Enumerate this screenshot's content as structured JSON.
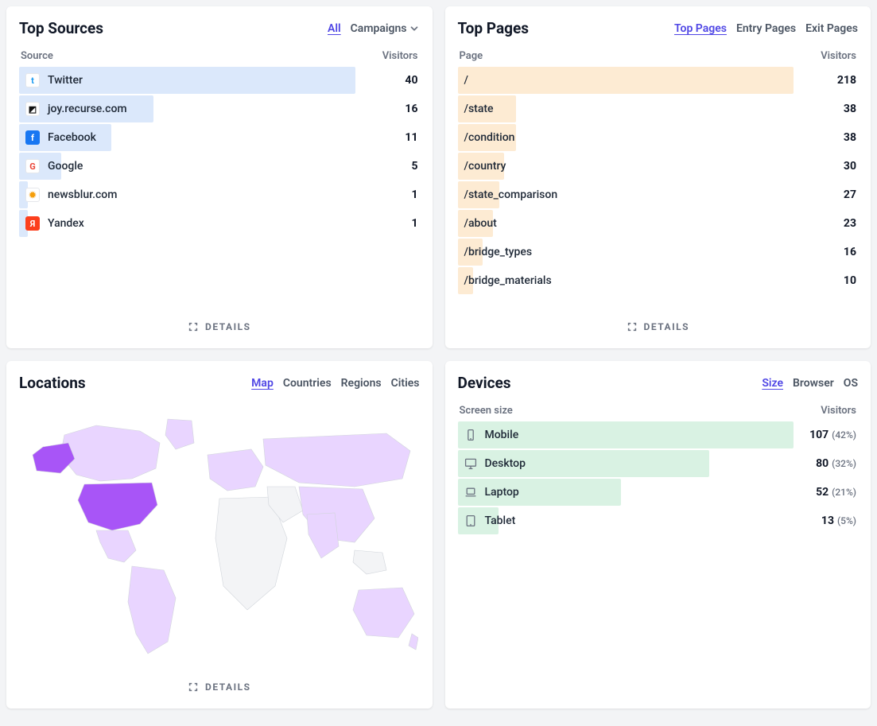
{
  "sources": {
    "title": "Top Sources",
    "tabs": [
      {
        "label": "All",
        "active": true
      },
      {
        "label": "Campaigns",
        "dropdown": true
      }
    ],
    "colLabel": "Source",
    "valueLabel": "Visitors",
    "barColor": "#dbe8fb",
    "maxValue": 40,
    "detailsLabel": "DETAILS",
    "rows": [
      {
        "label": "Twitter",
        "value": 40,
        "iconBg": "#ffffff",
        "iconColor": "#1d9bf0",
        "iconChar": "t"
      },
      {
        "label": "joy.recurse.com",
        "value": 16,
        "iconBg": "#ffffff",
        "iconColor": "#111111",
        "iconChar": "◩"
      },
      {
        "label": "Facebook",
        "value": 11,
        "iconBg": "#1877f2",
        "iconColor": "#ffffff",
        "iconChar": "f"
      },
      {
        "label": "Google",
        "value": 5,
        "iconBg": "#ffffff",
        "iconColor": "#ea4335",
        "iconChar": "G"
      },
      {
        "label": "newsblur.com",
        "value": 1,
        "iconBg": "#ffffff",
        "iconColor": "#f59e0b",
        "iconChar": "✹"
      },
      {
        "label": "Yandex",
        "value": 1,
        "iconBg": "#fc3f1d",
        "iconColor": "#ffffff",
        "iconChar": "Я"
      }
    ]
  },
  "pages": {
    "title": "Top Pages",
    "tabs": [
      {
        "label": "Top Pages",
        "active": true
      },
      {
        "label": "Entry Pages"
      },
      {
        "label": "Exit Pages"
      }
    ],
    "colLabel": "Page",
    "valueLabel": "Visitors",
    "barColor": "#fdebd3",
    "maxValue": 218,
    "detailsLabel": "DETAILS",
    "rows": [
      {
        "label": "/",
        "value": 218
      },
      {
        "label": "/state",
        "value": 38
      },
      {
        "label": "/condition",
        "value": 38
      },
      {
        "label": "/country",
        "value": 30
      },
      {
        "label": "/state_comparison",
        "value": 27
      },
      {
        "label": "/about",
        "value": 23
      },
      {
        "label": "/bridge_types",
        "value": 16
      },
      {
        "label": "/bridge_materials",
        "value": 10
      }
    ]
  },
  "locations": {
    "title": "Locations",
    "tabs": [
      {
        "label": "Map",
        "active": true
      },
      {
        "label": "Countries"
      },
      {
        "label": "Regions"
      },
      {
        "label": "Cities"
      }
    ],
    "detailsLabel": "DETAILS",
    "map": {
      "noDataFill": "#f3f4f6",
      "lowFill": "#e9d5ff",
      "medFill": "#c4b5fd",
      "highFill": "#a855f7",
      "stroke": "#d1d5db",
      "usHighlight": true
    }
  },
  "devices": {
    "title": "Devices",
    "tabs": [
      {
        "label": "Size",
        "active": true
      },
      {
        "label": "Browser"
      },
      {
        "label": "OS"
      }
    ],
    "colLabel": "Screen size",
    "valueLabel": "Visitors",
    "barColor": "#d9f2e3",
    "maxValue": 107,
    "rows": [
      {
        "label": "Mobile",
        "value": 107,
        "pct": "(42%)",
        "icon": "mobile"
      },
      {
        "label": "Desktop",
        "value": 80,
        "pct": "(32%)",
        "icon": "desktop"
      },
      {
        "label": "Laptop",
        "value": 52,
        "pct": "(21%)",
        "icon": "laptop"
      },
      {
        "label": "Tablet",
        "value": 13,
        "pct": "(5%)",
        "icon": "tablet"
      }
    ]
  }
}
